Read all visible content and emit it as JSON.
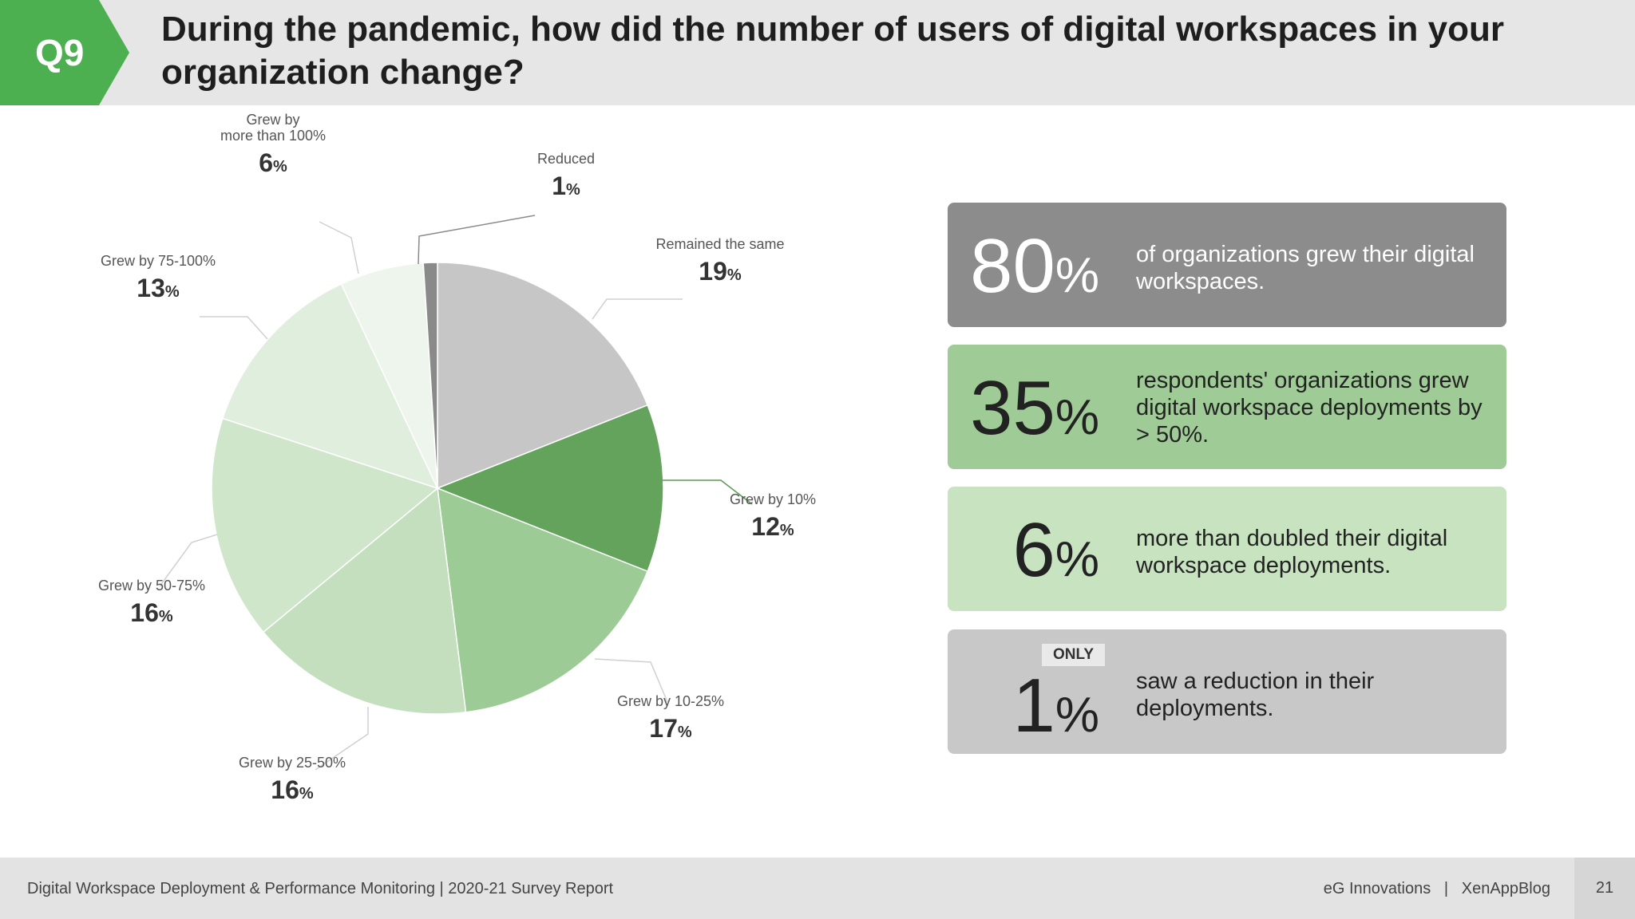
{
  "header": {
    "badge": "Q9",
    "title": "During the pandemic, how did the number of users of digital workspaces in your organization change?"
  },
  "chart_data": {
    "type": "pie",
    "title": "During the pandemic, how did the number of users of digital workspaces in your organization change?",
    "categories": [
      "Remained the same",
      "Grew by 10%",
      "Grew by 10-25%",
      "Grew by 25-50%",
      "Grew by 50-75%",
      "Grew by 75-100%",
      "Grew by more than 100%",
      "Reduced"
    ],
    "values": [
      19,
      12,
      17,
      16,
      16,
      13,
      6,
      1
    ],
    "colors": [
      "#c6c6c6",
      "#63a35c",
      "#9ccb95",
      "#c3dfbe",
      "#cfe6cb",
      "#e0eedd",
      "#eef5ec",
      "#8a8a8a"
    ],
    "label_lines": [
      [
        "Remained the same"
      ],
      [
        "Grew by 10%"
      ],
      [
        "Grew by 10-25%"
      ],
      [
        "Grew by 25-50%"
      ],
      [
        "Grew by 50-75%"
      ],
      [
        "Grew by 75-100%"
      ],
      [
        "Grew by",
        "more than 100%"
      ],
      [
        "Reduced"
      ]
    ],
    "unit": "%"
  },
  "stats": [
    {
      "value": "80",
      "unit": "%",
      "text": "of organizations grew their digital workspaces.",
      "badge": ""
    },
    {
      "value": "35",
      "unit": "%",
      "text": "respondents' organizations grew digital workspace deployments by > 50%.",
      "badge": ""
    },
    {
      "value": "6",
      "unit": "%",
      "text": "more than doubled their digital workspace deployments.",
      "badge": ""
    },
    {
      "value": "1",
      "unit": "%",
      "text": "saw a reduction in their deployments.",
      "badge": "ONLY"
    }
  ],
  "colors": {
    "badge_green": "#4caf50",
    "stat_bg": [
      "#8c8c8c",
      "#9fcb96",
      "#c7e3c0",
      "#c8c8c8"
    ],
    "stat_fg": [
      "#ffffff",
      "#222222",
      "#222222",
      "#222222"
    ]
  },
  "footer": {
    "report": "Digital Workspace Deployment & Performance Monitoring | 2020-21 Survey Report",
    "brands": "eG Innovations   |   XenAppBlog",
    "page": "21"
  }
}
